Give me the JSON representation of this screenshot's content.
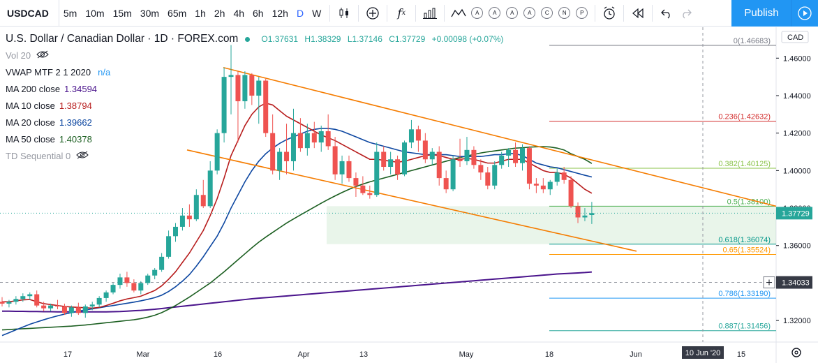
{
  "toolbar": {
    "symbol": "USDCAD",
    "intervals": [
      "5m",
      "10m",
      "15m",
      "30m",
      "65m",
      "1h",
      "2h",
      "4h",
      "6h",
      "12h",
      "D",
      "W"
    ],
    "active_interval": "D",
    "study_letters": [
      "A",
      "A",
      "A",
      "A",
      "C",
      "N",
      "P"
    ],
    "publish_label": "Publish"
  },
  "legend": {
    "title": "U.S. Dollar / Canadian Dollar · 1D · FOREX.com",
    "ohlc": {
      "o": "O1.37631",
      "h": "H1.38329",
      "l": "L1.37146",
      "c": "C1.37729",
      "chg": "+0.00098 (+0.07%)"
    },
    "vol": "Vol 20",
    "vwap": {
      "label": "VWAP MTF 2 1 2020",
      "value": "n/a"
    },
    "ma200": {
      "label": "MA 200 close",
      "value": "1.34594",
      "color": "#4a148c"
    },
    "ma10": {
      "label": "MA 10 close",
      "value": "1.38794",
      "color": "#b71c1c"
    },
    "ma20": {
      "label": "MA 20 close",
      "value": "1.39662",
      "color": "#0d47a1"
    },
    "ma50": {
      "label": "MA 50 close",
      "value": "1.40378",
      "color": "#1b5e20"
    },
    "td": "TD Sequential 0"
  },
  "chart_data": {
    "type": "candlestick",
    "currency": "CAD",
    "price_ticks": [
      "1.46000",
      "1.44000",
      "1.42000",
      "1.40000",
      "1.38000",
      "1.36000",
      "1.34000",
      "1.32000"
    ],
    "ylim": [
      1.3085,
      1.4765
    ],
    "date_ticks": [
      "17",
      "Mar",
      "16",
      "Apr",
      "13",
      "May",
      "18",
      "Jun",
      "15"
    ],
    "last_price": "1.37729",
    "crosshair_price": "1.34033",
    "crosshair_date": "10 Jun '20",
    "fibonacci": [
      {
        "level": "0",
        "price": 1.46683,
        "label": "0(1.46683)",
        "color": "#787b86"
      },
      {
        "level": "0.236",
        "price": 1.42632,
        "label": "0.236(1.42632)",
        "color": "#d32f2f"
      },
      {
        "level": "0.382",
        "price": 1.40125,
        "label": "0.382(1.40125)",
        "color": "#8bc34a"
      },
      {
        "level": "0.5",
        "price": 1.381,
        "label": "0.5(1.38100)",
        "color": "#4caf50"
      },
      {
        "level": "0.618",
        "price": 1.36074,
        "label": "0.618(1.36074)",
        "color": "#009688"
      },
      {
        "level": "0.65",
        "price": 1.35524,
        "label": "0.65(1.35524)",
        "color": "#ff9800"
      },
      {
        "level": "0.786",
        "price": 1.3319,
        "label": "0.786(1.33190)",
        "color": "#2196f3"
      },
      {
        "level": "0.887",
        "price": 1.31456,
        "label": "0.887(1.31456)",
        "color": "#26a69a"
      }
    ],
    "up_color": "#26a69a",
    "down_color": "#ef5350",
    "candles": [
      [
        1.33,
        1.3325,
        1.3275,
        1.329
      ],
      [
        1.329,
        1.331,
        1.327,
        1.33
      ],
      [
        1.33,
        1.333,
        1.3285,
        1.3315
      ],
      [
        1.3315,
        1.3345,
        1.33,
        1.333
      ],
      [
        1.333,
        1.335,
        1.331,
        1.334
      ],
      [
        1.334,
        1.336,
        1.327,
        1.328
      ],
      [
        1.328,
        1.33,
        1.325,
        1.3265
      ],
      [
        1.3265,
        1.329,
        1.325,
        1.328
      ],
      [
        1.328,
        1.331,
        1.326,
        1.3275
      ],
      [
        1.3275,
        1.329,
        1.323,
        1.324
      ],
      [
        1.324,
        1.328,
        1.322,
        1.327
      ],
      [
        1.327,
        1.3295,
        1.323,
        1.324
      ],
      [
        1.324,
        1.3285,
        1.3215,
        1.3275
      ],
      [
        1.3275,
        1.33,
        1.3255,
        1.3285
      ],
      [
        1.3285,
        1.333,
        1.327,
        1.332
      ],
      [
        1.332,
        1.336,
        1.33,
        1.335
      ],
      [
        1.335,
        1.34,
        1.334,
        1.339
      ],
      [
        1.339,
        1.345,
        1.337,
        1.343
      ],
      [
        1.343,
        1.346,
        1.338,
        1.34
      ],
      [
        1.34,
        1.342,
        1.335,
        1.336
      ],
      [
        1.336,
        1.341,
        1.334,
        1.34
      ],
      [
        1.34,
        1.345,
        1.339,
        1.344
      ],
      [
        1.344,
        1.348,
        1.342,
        1.347
      ],
      [
        1.347,
        1.356,
        1.346,
        1.354
      ],
      [
        1.354,
        1.368,
        1.353,
        1.365
      ],
      [
        1.365,
        1.372,
        1.362,
        1.37
      ],
      [
        1.37,
        1.38,
        1.368,
        1.376
      ],
      [
        1.376,
        1.382,
        1.37,
        1.374
      ],
      [
        1.374,
        1.39,
        1.373,
        1.387
      ],
      [
        1.387,
        1.395,
        1.38,
        1.381
      ],
      [
        1.381,
        1.405,
        1.38,
        1.4
      ],
      [
        1.4,
        1.422,
        1.398,
        1.42
      ],
      [
        1.42,
        1.455,
        1.415,
        1.45
      ],
      [
        1.45,
        1.467,
        1.43,
        1.451
      ],
      [
        1.451,
        1.453,
        1.415,
        1.437
      ],
      [
        1.437,
        1.453,
        1.433,
        1.451
      ],
      [
        1.451,
        1.452,
        1.435,
        1.44
      ],
      [
        1.44,
        1.45,
        1.425,
        1.448
      ],
      [
        1.448,
        1.449,
        1.418,
        1.42
      ],
      [
        1.42,
        1.43,
        1.398,
        1.4
      ],
      [
        1.4,
        1.412,
        1.395,
        1.41
      ],
      [
        1.41,
        1.425,
        1.398,
        1.405
      ],
      [
        1.405,
        1.433,
        1.4,
        1.42
      ],
      [
        1.42,
        1.428,
        1.41,
        1.412
      ],
      [
        1.412,
        1.425,
        1.408,
        1.42
      ],
      [
        1.42,
        1.426,
        1.412,
        1.415
      ],
      [
        1.415,
        1.424,
        1.41,
        1.421
      ],
      [
        1.421,
        1.43,
        1.411,
        1.413
      ],
      [
        1.413,
        1.418,
        1.395,
        1.398
      ],
      [
        1.398,
        1.408,
        1.393,
        1.405
      ],
      [
        1.405,
        1.408,
        1.394,
        1.396
      ],
      [
        1.396,
        1.399,
        1.386,
        1.392
      ],
      [
        1.392,
        1.397,
        1.387,
        1.388
      ],
      [
        1.388,
        1.392,
        1.385,
        1.387
      ],
      [
        1.387,
        1.415,
        1.386,
        1.41
      ],
      [
        1.41,
        1.413,
        1.4,
        1.402
      ],
      [
        1.402,
        1.41,
        1.398,
        1.406
      ],
      [
        1.406,
        1.408,
        1.395,
        1.398
      ],
      [
        1.398,
        1.416,
        1.397,
        1.415
      ],
      [
        1.415,
        1.427,
        1.412,
        1.422
      ],
      [
        1.422,
        1.424,
        1.41,
        1.416
      ],
      [
        1.416,
        1.42,
        1.404,
        1.406
      ],
      [
        1.406,
        1.412,
        1.403,
        1.41
      ],
      [
        1.41,
        1.413,
        1.392,
        1.396
      ],
      [
        1.396,
        1.4,
        1.388,
        1.39
      ],
      [
        1.39,
        1.408,
        1.389,
        1.406
      ],
      [
        1.406,
        1.417,
        1.402,
        1.405
      ],
      [
        1.405,
        1.418,
        1.403,
        1.411
      ],
      [
        1.411,
        1.413,
        1.401,
        1.403
      ],
      [
        1.403,
        1.406,
        1.395,
        1.399
      ],
      [
        1.399,
        1.402,
        1.39,
        1.392
      ],
      [
        1.392,
        1.405,
        1.39,
        1.403
      ],
      [
        1.403,
        1.41,
        1.401,
        1.408
      ],
      [
        1.408,
        1.412,
        1.402,
        1.411
      ],
      [
        1.411,
        1.415,
        1.402,
        1.404
      ],
      [
        1.404,
        1.414,
        1.4,
        1.412
      ],
      [
        1.412,
        1.413,
        1.39,
        1.393
      ],
      [
        1.393,
        1.396,
        1.388,
        1.392
      ],
      [
        1.392,
        1.396,
        1.388,
        1.39
      ],
      [
        1.39,
        1.395,
        1.387,
        1.394
      ],
      [
        1.394,
        1.401,
        1.392,
        1.399
      ],
      [
        1.399,
        1.402,
        1.393,
        1.395
      ],
      [
        1.395,
        1.397,
        1.38,
        1.381
      ],
      [
        1.381,
        1.383,
        1.372,
        1.375
      ],
      [
        1.375,
        1.38,
        1.373,
        1.376
      ],
      [
        1.3763,
        1.3833,
        1.3715,
        1.3773
      ]
    ],
    "ma10": [
      1.33,
      1.33,
      1.3305,
      1.331,
      1.3312,
      1.33,
      1.329,
      1.3285,
      1.328,
      1.3275,
      1.3272,
      1.327,
      1.3268,
      1.3266,
      1.327,
      1.328,
      1.3292,
      1.3305,
      1.3315,
      1.3322,
      1.333,
      1.3345,
      1.336,
      1.3385,
      1.342,
      1.346,
      1.351,
      1.356,
      1.362,
      1.368,
      1.376,
      1.385,
      1.396,
      1.408,
      1.416,
      1.424,
      1.43,
      1.434,
      1.436,
      1.435,
      1.432,
      1.429,
      1.427,
      1.425,
      1.423,
      1.421,
      1.419,
      1.4175,
      1.416,
      1.414,
      1.412,
      1.41,
      1.408,
      1.406,
      1.406,
      1.4055,
      1.405,
      1.4045,
      1.405,
      1.406,
      1.407,
      1.408,
      1.4085,
      1.408,
      1.407,
      1.406,
      1.406,
      1.4065,
      1.406,
      1.405,
      1.404,
      1.404,
      1.405,
      1.406,
      1.406,
      1.406,
      1.404,
      1.402,
      1.4,
      1.399,
      1.399,
      1.398,
      1.396,
      1.393,
      1.39,
      1.3879
    ],
    "ma20": [
      1.312,
      1.3135,
      1.315,
      1.3165,
      1.318,
      1.3192,
      1.3204,
      1.3215,
      1.3225,
      1.3234,
      1.3242,
      1.325,
      1.3256,
      1.3262,
      1.3268,
      1.3274,
      1.328,
      1.3286,
      1.3292,
      1.3298,
      1.3305,
      1.3313,
      1.3322,
      1.3335,
      1.3355,
      1.338,
      1.341,
      1.3445,
      1.349,
      1.354,
      1.3595,
      1.365,
      1.372,
      1.38,
      1.387,
      1.394,
      1.4,
      1.405,
      1.409,
      1.412,
      1.4145,
      1.4165,
      1.418,
      1.4195,
      1.421,
      1.422,
      1.4225,
      1.4225,
      1.422,
      1.421,
      1.4195,
      1.418,
      1.4165,
      1.415,
      1.414,
      1.413,
      1.412,
      1.411,
      1.41,
      1.4095,
      1.409,
      1.4085,
      1.4085,
      1.4085,
      1.4085,
      1.408,
      1.4075,
      1.4075,
      1.4075,
      1.4075,
      1.408,
      1.4085,
      1.4085,
      1.409,
      1.409,
      1.408,
      1.406,
      1.404,
      1.403,
      1.402,
      1.4015,
      1.4005,
      1.3995,
      1.3985,
      1.3975,
      1.3966
    ],
    "ma50": [
      1.315,
      1.3152,
      1.3154,
      1.3156,
      1.3158,
      1.316,
      1.3162,
      1.3164,
      1.3166,
      1.3168,
      1.317,
      1.3173,
      1.3176,
      1.318,
      1.3184,
      1.3188,
      1.3192,
      1.3196,
      1.32,
      1.3204,
      1.321,
      1.3218,
      1.3228,
      1.3242,
      1.326,
      1.328,
      1.3302,
      1.3325,
      1.335,
      1.3375,
      1.34,
      1.343,
      1.346,
      1.3492,
      1.3524,
      1.3556,
      1.3588,
      1.3618,
      1.3645,
      1.367,
      1.3695,
      1.372,
      1.3742,
      1.3763,
      1.3784,
      1.3805,
      1.3826,
      1.3846,
      1.3865,
      1.3883,
      1.39,
      1.3915,
      1.3928,
      1.394,
      1.395,
      1.396,
      1.397,
      1.398,
      1.399,
      1.4,
      1.401,
      1.402,
      1.403,
      1.404,
      1.405,
      1.406,
      1.407,
      1.4078,
      1.4086,
      1.4094,
      1.41,
      1.4105,
      1.411,
      1.4115,
      1.412,
      1.4122,
      1.4125,
      1.4127,
      1.4128,
      1.4126,
      1.412,
      1.411,
      1.409,
      1.4075,
      1.406,
      1.4038
    ],
    "ma200": [
      1.325,
      1.325,
      1.3249,
      1.3249,
      1.3248,
      1.3248,
      1.3247,
      1.3247,
      1.3246,
      1.3246,
      1.3246,
      1.3246,
      1.3246,
      1.3246,
      1.3246,
      1.3246,
      1.3247,
      1.3248,
      1.325,
      1.3252,
      1.3254,
      1.3257,
      1.326,
      1.3264,
      1.3268,
      1.3272,
      1.3276,
      1.328,
      1.3284,
      1.3288,
      1.3292,
      1.3296,
      1.33,
      1.3304,
      1.3308,
      1.3312,
      1.3316,
      1.3319,
      1.3322,
      1.3325,
      1.3328,
      1.3331,
      1.3334,
      1.3337,
      1.334,
      1.3343,
      1.3346,
      1.3349,
      1.3352,
      1.3355,
      1.3358,
      1.3361,
      1.3364,
      1.3367,
      1.337,
      1.3373,
      1.3376,
      1.3379,
      1.3382,
      1.3385,
      1.3388,
      1.3391,
      1.3394,
      1.3397,
      1.34,
      1.3403,
      1.3406,
      1.3409,
      1.3412,
      1.3415,
      1.3418,
      1.3421,
      1.3424,
      1.3427,
      1.343,
      1.3433,
      1.3436,
      1.3439,
      1.3442,
      1.3445,
      1.3448,
      1.345,
      1.3452,
      1.3454,
      1.3456,
      1.3459
    ]
  }
}
